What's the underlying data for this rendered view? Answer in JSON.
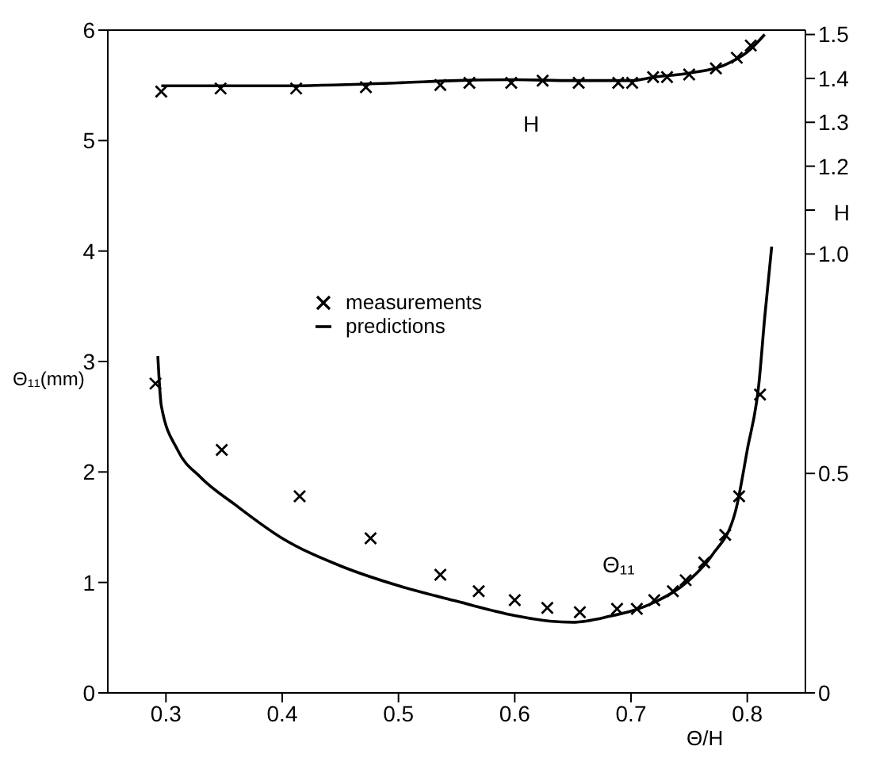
{
  "chart_data": {
    "type": "scatter",
    "xlabel": "Θ/H",
    "ylabel": "Θ₁₁(mm)",
    "y2label": "H",
    "xlim": [
      0.25,
      0.85
    ],
    "xticks": [
      0.3,
      0.4,
      0.5,
      0.6,
      0.7,
      0.8
    ],
    "ylim": [
      0,
      6
    ],
    "yticks": [
      0,
      1,
      2,
      3,
      4,
      5,
      6
    ],
    "y2lim": [
      0,
      1.51
    ],
    "y2ticks": [
      0,
      {
        "value": 0.5,
        "label": "0.5"
      },
      {
        "value": 1,
        "label": "1.0"
      },
      {
        "value": 1.1,
        "label": null
      },
      1.2,
      1.3,
      1.4,
      1.5
    ],
    "grid": false,
    "legend": "left",
    "annotations": [
      "H",
      "Θ₁₁"
    ],
    "series": [
      {
        "name": "measurements",
        "marker": "cross",
        "color": "#000000",
        "x": [
          0.291,
          0.348,
          0.415,
          0.476,
          0.536,
          0.569,
          0.6,
          0.628,
          0.656,
          0.688,
          0.705,
          0.72,
          0.736,
          0.747,
          0.763,
          0.781,
          0.793,
          0.811
        ],
        "values": [
          2.8,
          2.2,
          1.78,
          1.4,
          1.07,
          0.92,
          0.84,
          0.77,
          0.73,
          0.76,
          0.76,
          0.84,
          0.92,
          1.02,
          1.18,
          1.43,
          1.78,
          2.7
        ]
      },
      {
        "name": "predictions",
        "type": "line",
        "marker": "none",
        "color": "#000000",
        "line_style": "solid",
        "x": [
          0.293,
          0.296,
          0.31,
          0.33,
          0.36,
          0.4,
          0.45,
          0.5,
          0.55,
          0.6,
          0.63,
          0.65,
          0.68,
          0.72,
          0.75,
          0.77,
          0.79,
          0.8,
          0.81,
          0.815,
          0.821
        ],
        "values": [
          3.05,
          2.6,
          2.2,
          1.95,
          1.7,
          1.4,
          1.15,
          0.97,
          0.83,
          0.7,
          0.65,
          0.64,
          0.69,
          0.82,
          1.02,
          1.25,
          1.65,
          2.2,
          2.8,
          3.4,
          4.04
        ]
      },
      {
        "axis": "y2",
        "marker": "cross",
        "color": "#000000",
        "x": [
          0.296,
          0.347,
          0.412,
          0.472,
          0.536,
          0.561,
          0.597,
          0.624,
          0.655,
          0.689,
          0.701,
          0.719,
          0.731,
          0.75,
          0.773,
          0.791,
          0.803
        ],
        "values": [
          1.37,
          1.377,
          1.377,
          1.38,
          1.385,
          1.39,
          1.39,
          1.395,
          1.39,
          1.39,
          1.39,
          1.403,
          1.403,
          1.409,
          1.423,
          1.447,
          1.475
        ]
      },
      {
        "type": "line",
        "axis": "y2",
        "marker": "none",
        "color": "#000000",
        "line_style": "solid",
        "x": [
          0.296,
          0.4,
          0.5,
          0.55,
          0.6,
          0.65,
          0.7,
          0.72,
          0.75,
          0.78,
          0.8,
          0.815
        ],
        "values": [
          1.383,
          1.383,
          1.39,
          1.395,
          1.397,
          1.395,
          1.395,
          1.403,
          1.412,
          1.43,
          1.46,
          1.5
        ]
      }
    ]
  }
}
